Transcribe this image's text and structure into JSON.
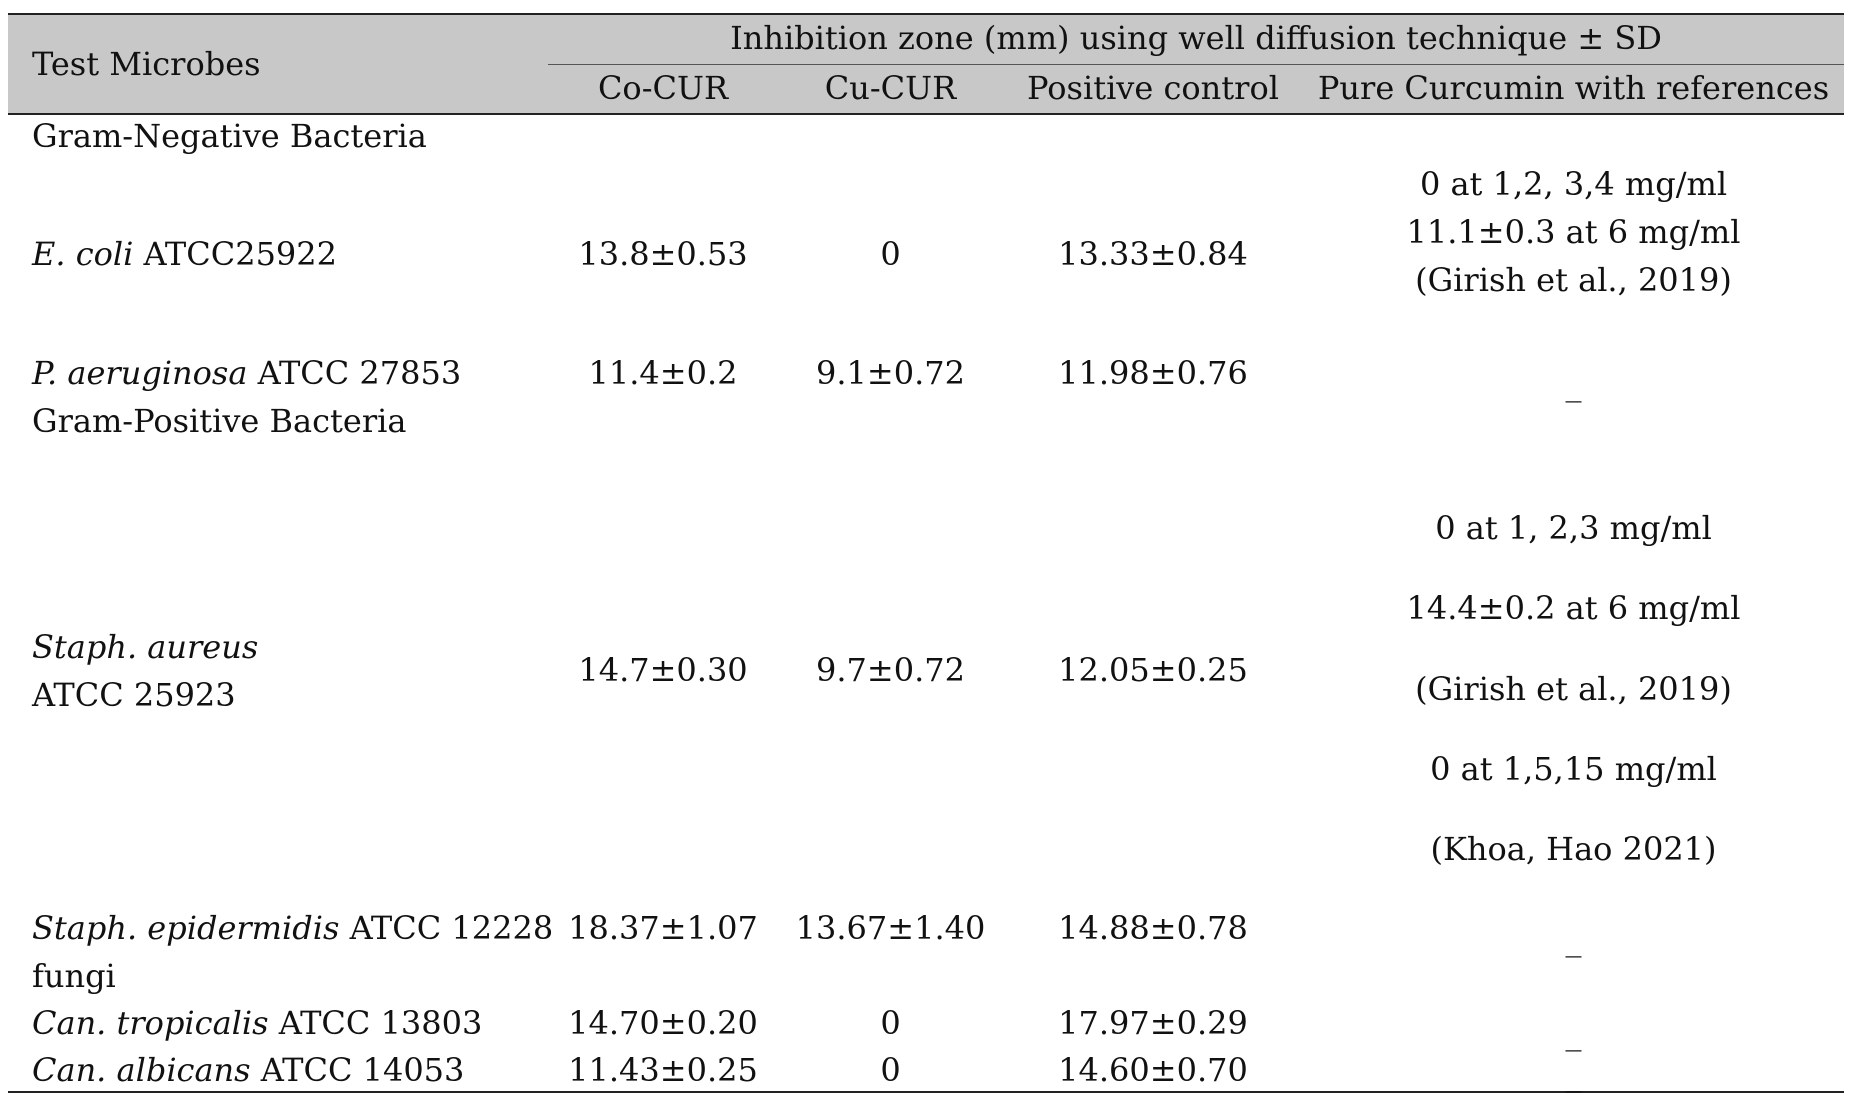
{
  "header": {
    "test_microbes": "Test Microbes",
    "group_title": "Inhibition zone (mm) using well diffusion technique ± SD",
    "columns": [
      "Co-CUR",
      "Cu-CUR",
      "Positive control",
      "Pure Curcumin with references"
    ]
  },
  "sections": {
    "gram_negative": "Gram-Negative Bacteria",
    "gram_positive": "Gram-Positive Bacteria",
    "fungi": "fungi"
  },
  "rows": {
    "ecoli": {
      "name_italic": "E. coli",
      "name_rest": " ATCC25922",
      "co": "13.8±0.53",
      "cu": "0",
      "pos": "13.33±0.84",
      "pure": [
        "0 at 1,2, 3,4 mg/ml",
        "11.1±0.3 at 6 mg/ml",
        "(Girish et al., 2019)"
      ]
    },
    "paeruginosa": {
      "name_italic": "P. aeruginosa",
      "name_rest": " ATCC 27853",
      "co": "11.4±0.2",
      "cu": "9.1±0.72",
      "pos": "11.98±0.76",
      "pure": "_"
    },
    "staph_aureus": {
      "name_italic": "Staph. aureus",
      "name_line2": "ATCC 25923",
      "co": "14.7±0.30",
      "cu": "9.7±0.72",
      "pos": "12.05±0.25",
      "pure": [
        "0 at 1, 2,3 mg/ml",
        "14.4±0.2 at 6 mg/ml",
        "(Girish et al., 2019)",
        "0 at 1,5,15 mg/ml",
        "(Khoa, Hao 2021)"
      ]
    },
    "staph_epidermidis": {
      "name_italic": "Staph. epidermidis",
      "name_rest": " ATCC 12228",
      "co": "18.37±1.07",
      "cu": "13.67±1.40",
      "pos": "14.88±0.78",
      "pure": "_"
    },
    "can_tropicalis": {
      "name_italic": "Can. tropicalis",
      "name_rest": " ATCC 13803",
      "co": "14.70±0.20",
      "cu": "0",
      "pos": "17.97±0.29",
      "pure": "_"
    },
    "can_albicans": {
      "name_italic": "Can. albicans",
      "name_rest": " ATCC 14053",
      "co": "11.43±0.25",
      "cu": "0",
      "pos": "14.60±0.70",
      "pure": "_"
    }
  }
}
